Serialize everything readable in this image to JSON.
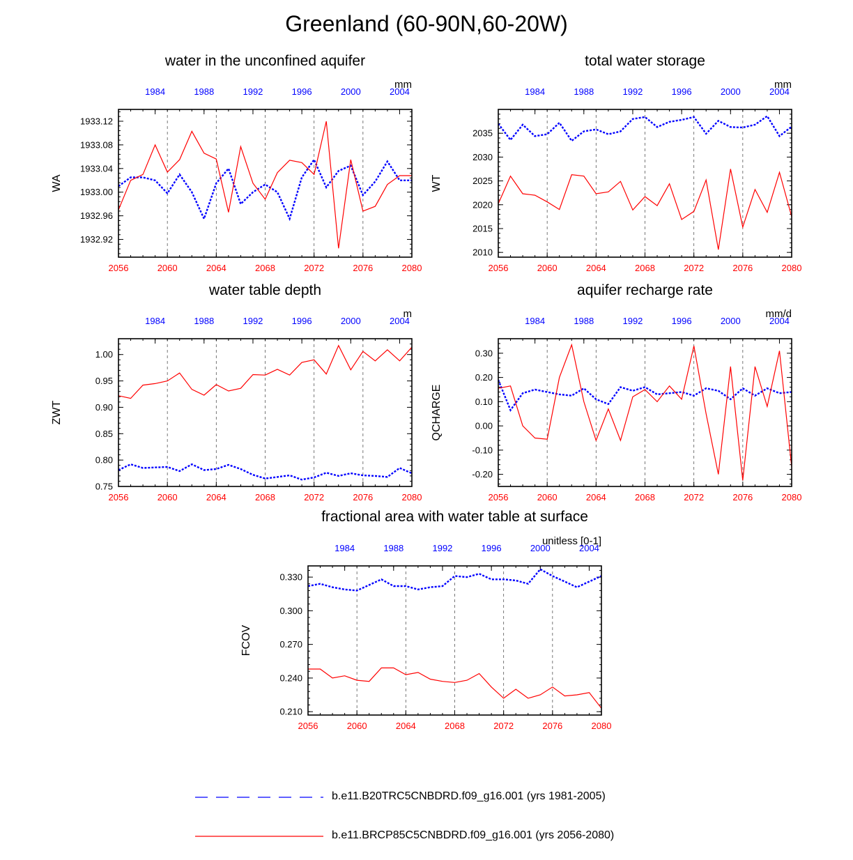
{
  "title": "Greenland (60-90N,60-20W)",
  "colors": {
    "historical": "#0000ff",
    "future": "#ff0000",
    "axis": "#000000"
  },
  "legend": [
    {
      "label": "b.e11.B20TRC5CNBDRD.f09_g16.001 (yrs 1981-2005)",
      "color": "#0000ff",
      "style": "dashed"
    },
    {
      "label": "b.e11.BRCP85C5CNBDRD.f09_g16.001 (yrs 2056-2080)",
      "color": "#ff0000",
      "style": "solid"
    }
  ],
  "chart_data": [
    {
      "type": "line",
      "title": "water in the unconfined aquifer",
      "units": "mm",
      "ylabel": "WA",
      "ylim": [
        1932.89,
        1933.14
      ],
      "yticks": [
        1932.92,
        1932.96,
        1933.0,
        1933.04,
        1933.08,
        1933.12
      ],
      "ytick_labels": [
        "1932.92",
        "1932.96",
        "1933.00",
        "1933.04",
        "1933.08",
        "1933.12"
      ],
      "top_ticks": [
        1984,
        1988,
        1992,
        1996,
        2000,
        2004
      ],
      "bottom_ticks": [
        2056,
        2060,
        2064,
        2068,
        2072,
        2076,
        2080
      ],
      "series": [
        {
          "name": "b.e11.B20TRC5CNBDRD.f09_g16.001 (yrs 1981-2005)",
          "x": [
            1981,
            1982,
            1983,
            1984,
            1985,
            1986,
            1987,
            1988,
            1989,
            1990,
            1991,
            1992,
            1993,
            1994,
            1995,
            1996,
            1997,
            1998,
            1999,
            2000,
            2001,
            2002,
            2003,
            2004,
            2005
          ],
          "values": [
            1933.01,
            1933.025,
            1933.025,
            1933.02,
            1932.998,
            1933.03,
            1933.0,
            1932.955,
            1933.015,
            1933.04,
            1932.98,
            1933.0,
            1933.013,
            1933.0,
            1932.955,
            1933.025,
            1933.055,
            1933.008,
            1933.036,
            1933.045,
            1932.995,
            1933.018,
            1933.052,
            1933.02,
            1933.02
          ]
        },
        {
          "name": "b.e11.BRCP85C5CNBDRD.f09_g16.001 (yrs 2056-2080)",
          "x": [
            2056,
            2057,
            2058,
            2059,
            2060,
            2061,
            2062,
            2063,
            2064,
            2065,
            2066,
            2067,
            2068,
            2069,
            2070,
            2071,
            2072,
            2073,
            2074,
            2075,
            2076,
            2077,
            2078,
            2079,
            2080
          ],
          "values": [
            1932.97,
            1933.02,
            1933.03,
            1933.08,
            1933.034,
            1933.055,
            1933.103,
            1933.066,
            1933.056,
            1932.966,
            1933.077,
            1933.015,
            1932.988,
            1933.033,
            1933.054,
            1933.05,
            1933.03,
            1933.12,
            1932.905,
            1933.055,
            1932.968,
            1932.976,
            1933.013,
            1933.028,
            1933.028
          ]
        }
      ]
    },
    {
      "type": "line",
      "title": "total water storage",
      "units": "mm",
      "ylabel": "WT",
      "ylim": [
        2009,
        2040
      ],
      "yticks": [
        2010,
        2015,
        2020,
        2025,
        2030,
        2035
      ],
      "ytick_labels": [
        "2010",
        "2015",
        "2020",
        "2025",
        "2030",
        "2035"
      ],
      "top_ticks": [
        1984,
        1988,
        1992,
        1996,
        2000,
        2004
      ],
      "bottom_ticks": [
        2056,
        2060,
        2064,
        2068,
        2072,
        2076,
        2080
      ],
      "series": [
        {
          "name": "b.e11.B20TRC5CNBDRD.f09_g16.001 (yrs 1981-2005)",
          "x": [
            1981,
            1982,
            1983,
            1984,
            1985,
            1986,
            1987,
            1988,
            1989,
            1990,
            1991,
            1992,
            1993,
            1994,
            1995,
            1996,
            1997,
            1998,
            1999,
            2000,
            2001,
            2002,
            2003,
            2004,
            2005
          ],
          "values": [
            2037,
            2033.6,
            2036.8,
            2034.4,
            2034.8,
            2037.2,
            2033.4,
            2035.4,
            2035.8,
            2034.8,
            2035.4,
            2038.0,
            2038.4,
            2036.3,
            2037.4,
            2037.8,
            2038.4,
            2034.9,
            2037.6,
            2036.3,
            2036.2,
            2036.8,
            2038.6,
            2034.4,
            2036.4
          ]
        },
        {
          "name": "b.e11.BRCP85C5CNBDRD.f09_g16.001 (yrs 2056-2080)",
          "x": [
            2056,
            2057,
            2058,
            2059,
            2060,
            2061,
            2062,
            2063,
            2064,
            2065,
            2066,
            2067,
            2068,
            2069,
            2070,
            2071,
            2072,
            2073,
            2074,
            2075,
            2076,
            2077,
            2078,
            2079,
            2080
          ],
          "values": [
            2020.2,
            2026.0,
            2022.3,
            2022.0,
            2020.6,
            2019.0,
            2026.3,
            2026.0,
            2022.3,
            2022.7,
            2024.9,
            2018.9,
            2021.7,
            2019.8,
            2024.4,
            2016.9,
            2018.6,
            2025.2,
            2010.6,
            2027.5,
            2015.3,
            2023.2,
            2018.4,
            2026.8,
            2017.5
          ]
        }
      ]
    },
    {
      "type": "line",
      "title": "water table depth",
      "units": "m",
      "ylabel": "ZWT",
      "ylim": [
        0.75,
        1.03
      ],
      "yticks": [
        0.75,
        0.8,
        0.85,
        0.9,
        0.95,
        1.0
      ],
      "ytick_labels": [
        "0.75",
        "0.80",
        "0.85",
        "0.90",
        "0.95",
        "1.00"
      ],
      "top_ticks": [
        1984,
        1988,
        1992,
        1996,
        2000,
        2004
      ],
      "bottom_ticks": [
        2056,
        2060,
        2064,
        2068,
        2072,
        2076,
        2080
      ],
      "series": [
        {
          "name": "b.e11.B20TRC5CNBDRD.f09_g16.001 (yrs 1981-2005)",
          "x": [
            1981,
            1982,
            1983,
            1984,
            1985,
            1986,
            1987,
            1988,
            1989,
            1990,
            1991,
            1992,
            1993,
            1994,
            1995,
            1996,
            1997,
            1998,
            1999,
            2000,
            2001,
            2002,
            2003,
            2004,
            2005
          ],
          "values": [
            0.781,
            0.792,
            0.785,
            0.786,
            0.787,
            0.779,
            0.792,
            0.781,
            0.783,
            0.791,
            0.783,
            0.772,
            0.765,
            0.768,
            0.771,
            0.763,
            0.767,
            0.776,
            0.77,
            0.775,
            0.771,
            0.77,
            0.768,
            0.785,
            0.775
          ]
        },
        {
          "name": "b.e11.BRCP85C5CNBDRD.f09_g16.001 (yrs 2056-2080)",
          "x": [
            2056,
            2057,
            2058,
            2059,
            2060,
            2061,
            2062,
            2063,
            2064,
            2065,
            2066,
            2067,
            2068,
            2069,
            2070,
            2071,
            2072,
            2073,
            2074,
            2075,
            2076,
            2077,
            2078,
            2079,
            2080
          ],
          "values": [
            0.922,
            0.917,
            0.942,
            0.945,
            0.95,
            0.965,
            0.934,
            0.923,
            0.943,
            0.931,
            0.936,
            0.962,
            0.961,
            0.972,
            0.961,
            0.985,
            0.99,
            0.963,
            1.017,
            0.971,
            1.006,
            0.988,
            1.009,
            0.988,
            1.014
          ]
        }
      ]
    },
    {
      "type": "line",
      "title": "aquifer recharge rate",
      "units": "mm/d",
      "ylabel": "QCHARGE",
      "ylim": [
        -0.25,
        0.36
      ],
      "yticks": [
        -0.2,
        -0.1,
        0.0,
        0.1,
        0.2,
        0.3
      ],
      "ytick_labels": [
        "-0.20",
        "-0.10",
        "0.00",
        "0.10",
        "0.20",
        "0.30"
      ],
      "top_ticks": [
        1984,
        1988,
        1992,
        1996,
        2000,
        2004
      ],
      "bottom_ticks": [
        2056,
        2060,
        2064,
        2068,
        2072,
        2076,
        2080
      ],
      "series": [
        {
          "name": "b.e11.B20TRC5CNBDRD.f09_g16.001 (yrs 1981-2005)",
          "x": [
            1981,
            1982,
            1983,
            1984,
            1985,
            1986,
            1987,
            1988,
            1989,
            1990,
            1991,
            1992,
            1993,
            1994,
            1995,
            1996,
            1997,
            1998,
            1999,
            2000,
            2001,
            2002,
            2003,
            2004,
            2005
          ],
          "values": [
            0.19,
            0.065,
            0.135,
            0.15,
            0.14,
            0.13,
            0.125,
            0.155,
            0.11,
            0.09,
            0.16,
            0.145,
            0.16,
            0.13,
            0.135,
            0.14,
            0.125,
            0.155,
            0.145,
            0.11,
            0.155,
            0.125,
            0.155,
            0.135,
            0.14
          ]
        },
        {
          "name": "b.e11.BRCP85C5CNBDRD.f09_g16.001 (yrs 2056-2080)",
          "x": [
            2056,
            2057,
            2058,
            2059,
            2060,
            2061,
            2062,
            2063,
            2064,
            2065,
            2066,
            2067,
            2068,
            2069,
            2070,
            2071,
            2072,
            2073,
            2074,
            2075,
            2076,
            2077,
            2078,
            2079,
            2080
          ],
          "values": [
            0.155,
            0.165,
            0.0,
            -0.05,
            -0.055,
            0.2,
            0.335,
            0.1,
            -0.06,
            0.07,
            -0.06,
            0.12,
            0.15,
            0.1,
            0.165,
            0.11,
            0.33,
            0.05,
            -0.2,
            0.245,
            -0.225,
            0.245,
            0.08,
            0.31,
            -0.17
          ]
        }
      ]
    },
    {
      "type": "line",
      "title": "fractional area with water table at surface",
      "units": "unitless [0-1]",
      "ylabel": "FCOV",
      "ylim": [
        0.207,
        0.34
      ],
      "yticks": [
        0.21,
        0.24,
        0.27,
        0.3,
        0.33
      ],
      "ytick_labels": [
        "0.210",
        "0.240",
        "0.270",
        "0.300",
        "0.330"
      ],
      "top_ticks": [
        1984,
        1988,
        1992,
        1996,
        2000,
        2004
      ],
      "bottom_ticks": [
        2056,
        2060,
        2064,
        2068,
        2072,
        2076,
        2080
      ],
      "series": [
        {
          "name": "b.e11.B20TRC5CNBDRD.f09_g16.001 (yrs 1981-2005)",
          "x": [
            1981,
            1982,
            1983,
            1984,
            1985,
            1986,
            1987,
            1988,
            1989,
            1990,
            1991,
            1992,
            1993,
            1994,
            1995,
            1996,
            1997,
            1998,
            1999,
            2000,
            2001,
            2002,
            2003,
            2004,
            2005
          ],
          "values": [
            0.322,
            0.324,
            0.321,
            0.319,
            0.318,
            0.323,
            0.328,
            0.322,
            0.322,
            0.319,
            0.321,
            0.322,
            0.331,
            0.33,
            0.333,
            0.328,
            0.328,
            0.327,
            0.324,
            0.337,
            0.331,
            0.326,
            0.321,
            0.326,
            0.331
          ]
        },
        {
          "name": "b.e11.BRCP85C5CNBDRD.f09_g16.001 (yrs 2056-2080)",
          "x": [
            2056,
            2057,
            2058,
            2059,
            2060,
            2061,
            2062,
            2063,
            2064,
            2065,
            2066,
            2067,
            2068,
            2069,
            2070,
            2071,
            2072,
            2073,
            2074,
            2075,
            2076,
            2077,
            2078,
            2079,
            2080
          ],
          "values": [
            0.248,
            0.248,
            0.24,
            0.242,
            0.238,
            0.237,
            0.249,
            0.249,
            0.243,
            0.245,
            0.239,
            0.237,
            0.236,
            0.238,
            0.244,
            0.232,
            0.222,
            0.23,
            0.222,
            0.225,
            0.232,
            0.224,
            0.225,
            0.227,
            0.213
          ]
        }
      ]
    }
  ]
}
